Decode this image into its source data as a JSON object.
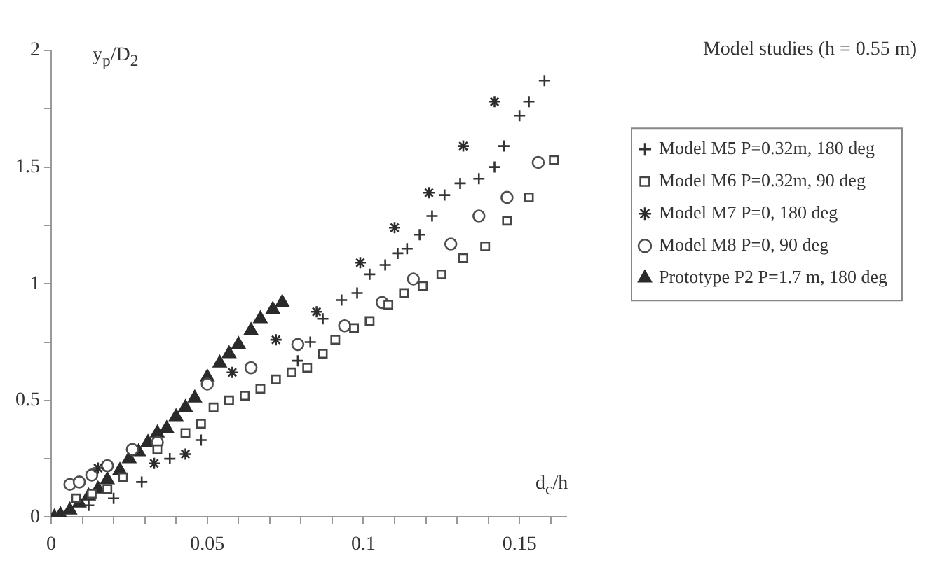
{
  "chart_data": {
    "type": "scatter",
    "title": "Model studies (h = 0.55 m)",
    "xlabel": "d$_{c}$/h",
    "ylabel": "y$_{p}$/D$_{2}$",
    "xlim": [
      0,
      0.165
    ],
    "ylim": [
      0,
      2
    ],
    "xticks": [
      0,
      {
        "value": 0.01,
        "label": null
      },
      {
        "value": 0.02,
        "label": null
      },
      {
        "value": 0.03,
        "label": null
      },
      {
        "value": 0.04,
        "label": null
      },
      0.05,
      {
        "value": 0.06,
        "label": null
      },
      {
        "value": 0.07,
        "label": null
      },
      {
        "value": 0.08,
        "label": null
      },
      {
        "value": 0.09,
        "label": null
      },
      0.1,
      {
        "value": 0.11,
        "label": null
      },
      {
        "value": 0.12,
        "label": null
      },
      {
        "value": 0.13,
        "label": null
      },
      {
        "value": 0.14,
        "label": null
      },
      0.15,
      {
        "value": 0.16,
        "label": null
      }
    ],
    "yticks": [
      0,
      {
        "value": 0.25,
        "label": null
      },
      0.5,
      {
        "value": 0.75,
        "label": null
      },
      1,
      {
        "value": 1.25,
        "label": null
      },
      1.5,
      {
        "value": 1.75,
        "label": null
      },
      2
    ],
    "grid": false,
    "legend": "right",
    "series": [
      {
        "name": "Model M5 P=0.32m, 180 deg",
        "color": "#333333",
        "marker": "cross",
        "x": [
          0.012,
          0.02,
          0.029,
          0.038,
          0.048,
          0.079,
          0.083,
          0.087,
          0.093,
          0.098,
          0.102,
          0.107,
          0.111,
          0.114,
          0.118,
          0.122,
          0.126,
          0.131,
          0.137,
          0.142,
          0.145,
          0.15,
          0.153,
          0.158
        ],
        "values": [
          0.05,
          0.08,
          0.15,
          0.25,
          0.33,
          0.67,
          0.75,
          0.85,
          0.93,
          0.96,
          1.04,
          1.08,
          1.13,
          1.15,
          1.21,
          1.29,
          1.38,
          1.43,
          1.45,
          1.5,
          1.59,
          1.72,
          1.78,
          1.87
        ]
      },
      {
        "name": "Model M6 P=0.32m, 90 deg",
        "color": "#454545",
        "marker": "square",
        "x": [
          0.008,
          0.013,
          0.018,
          0.023,
          0.034,
          0.043,
          0.048,
          0.052,
          0.057,
          0.062,
          0.067,
          0.072,
          0.077,
          0.082,
          0.087,
          0.091,
          0.097,
          0.102,
          0.108,
          0.113,
          0.119,
          0.125,
          0.132,
          0.139,
          0.146,
          0.153,
          0.161
        ],
        "values": [
          0.08,
          0.1,
          0.12,
          0.17,
          0.29,
          0.36,
          0.4,
          0.47,
          0.5,
          0.52,
          0.55,
          0.59,
          0.62,
          0.64,
          0.7,
          0.76,
          0.81,
          0.84,
          0.91,
          0.96,
          0.99,
          1.04,
          1.11,
          1.16,
          1.27,
          1.37,
          1.53
        ]
      },
      {
        "name": "Model M7 P=0, 180 deg",
        "color": "#2c2c2c",
        "marker": "cross",
        "x": [
          0.015,
          0.033,
          0.043,
          0.058,
          0.072,
          0.085,
          0.099,
          0.11,
          0.121,
          0.132,
          0.142
        ],
        "values": [
          0.21,
          0.23,
          0.27,
          0.62,
          0.76,
          0.88,
          1.09,
          1.24,
          1.39,
          1.59,
          1.78
        ]
      },
      {
        "name": "Model M8 P=0, 90 deg",
        "color": "#4d4d4d",
        "marker": "circle",
        "x": [
          0.006,
          0.009,
          0.013,
          0.018,
          0.026,
          0.034,
          0.05,
          0.064,
          0.079,
          0.094,
          0.106,
          0.116,
          0.128,
          0.137,
          0.146,
          0.156
        ],
        "values": [
          0.14,
          0.15,
          0.18,
          0.22,
          0.29,
          0.32,
          0.57,
          0.64,
          0.74,
          0.82,
          0.92,
          1.02,
          1.17,
          1.29,
          1.37,
          1.52
        ]
      },
      {
        "name": "Prototype P2 P=1.7 m, 180 deg",
        "color": "#2a2a2a",
        "marker": "triangle",
        "x": [
          0.001,
          0.003,
          0.006,
          0.009,
          0.012,
          0.015,
          0.018,
          0.022,
          0.025,
          0.028,
          0.031,
          0.034,
          0.037,
          0.04,
          0.043,
          0.046,
          0.05,
          0.054,
          0.057,
          0.06,
          0.064,
          0.067,
          0.071,
          0.074
        ],
        "values": [
          0,
          0.01,
          0.03,
          0.06,
          0.09,
          0.12,
          0.16,
          0.2,
          0.25,
          0.28,
          0.32,
          0.36,
          0.38,
          0.43,
          0.47,
          0.51,
          0.6,
          0.66,
          0.7,
          0.74,
          0.8,
          0.85,
          0.89,
          0.92
        ]
      }
    ]
  }
}
